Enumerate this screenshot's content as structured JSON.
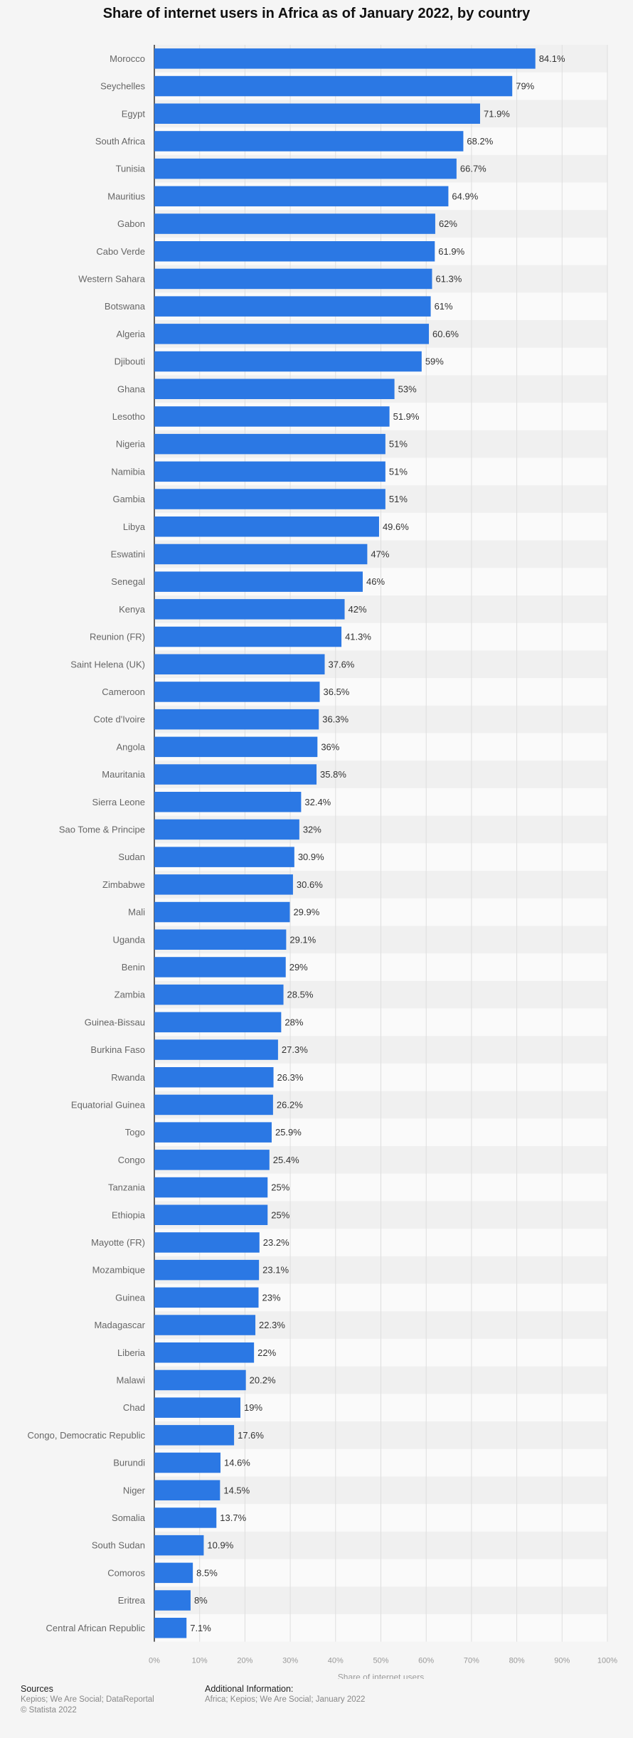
{
  "title": "Share of internet users in Africa as of January 2022, by country",
  "chart_data": {
    "type": "bar",
    "orientation": "horizontal",
    "title": "Share of internet users in Africa as of January 2022, by country",
    "xlabel": "Share of internet users",
    "ylabel": "",
    "xlim": [
      0,
      100
    ],
    "x_ticks": [
      "0%",
      "10%",
      "20%",
      "30%",
      "40%",
      "50%",
      "60%",
      "70%",
      "80%",
      "90%",
      "100%"
    ],
    "categories": [
      "Morocco",
      "Seychelles",
      "Egypt",
      "South Africa",
      "Tunisia",
      "Mauritius",
      "Gabon",
      "Cabo Verde",
      "Western Sahara",
      "Botswana",
      "Algeria",
      "Djibouti",
      "Ghana",
      "Lesotho",
      "Nigeria",
      "Namibia",
      "Gambia",
      "Libya",
      "Eswatini",
      "Senegal",
      "Kenya",
      "Reunion (FR)",
      "Saint Helena (UK)",
      "Cameroon",
      "Cote d'Ivoire",
      "Angola",
      "Mauritania",
      "Sierra Leone",
      "Sao Tome & Principe",
      "Sudan",
      "Zimbabwe",
      "Mali",
      "Uganda",
      "Benin",
      "Zambia",
      "Guinea-Bissau",
      "Burkina Faso",
      "Rwanda",
      "Equatorial Guinea",
      "Togo",
      "Congo",
      "Tanzania",
      "Ethiopia",
      "Mayotte (FR)",
      "Mozambique",
      "Guinea",
      "Madagascar",
      "Liberia",
      "Malawi",
      "Chad",
      "Congo, Democratic Republic",
      "Burundi",
      "Niger",
      "Somalia",
      "South Sudan",
      "Comoros",
      "Eritrea",
      "Central African Republic"
    ],
    "values": [
      84.1,
      79,
      71.9,
      68.2,
      66.7,
      64.9,
      62,
      61.9,
      61.3,
      61,
      60.6,
      59,
      53,
      51.9,
      51,
      51,
      51,
      49.6,
      47,
      46,
      42,
      41.3,
      37.6,
      36.5,
      36.3,
      36,
      35.8,
      32.4,
      32,
      30.9,
      30.6,
      29.9,
      29.1,
      29,
      28.5,
      28,
      27.3,
      26.3,
      26.2,
      25.9,
      25.4,
      25,
      25,
      23.2,
      23.1,
      23,
      22.3,
      22,
      20.2,
      19,
      17.6,
      14.6,
      14.5,
      13.7,
      10.9,
      8.5,
      8,
      7.1
    ],
    "value_labels": [
      "84.1%",
      "79%",
      "71.9%",
      "68.2%",
      "66.7%",
      "64.9%",
      "62%",
      "61.9%",
      "61.3%",
      "61%",
      "60.6%",
      "59%",
      "53%",
      "51.9%",
      "51%",
      "51%",
      "51%",
      "49.6%",
      "47%",
      "46%",
      "42%",
      "41.3%",
      "37.6%",
      "36.5%",
      "36.3%",
      "36%",
      "35.8%",
      "32.4%",
      "32%",
      "30.9%",
      "30.6%",
      "29.9%",
      "29.1%",
      "29%",
      "28.5%",
      "28%",
      "27.3%",
      "26.3%",
      "26.2%",
      "25.9%",
      "25.4%",
      "25%",
      "25%",
      "23.2%",
      "23.1%",
      "23%",
      "22.3%",
      "22%",
      "20.2%",
      "19%",
      "17.6%",
      "14.6%",
      "14.5%",
      "13.7%",
      "10.9%",
      "8.5%",
      "8%",
      "7.1%"
    ],
    "bar_color": "#2b78e4",
    "grid": true,
    "legend": "none"
  },
  "footer": {
    "sources_heading": "Sources",
    "sources_line1": "Kepios; We Are Social; DataReportal",
    "sources_line2": "© Statista 2022",
    "info_heading": "Additional Information:",
    "info_line1": "Africa; Kepios; We Are Social; January 2022"
  }
}
